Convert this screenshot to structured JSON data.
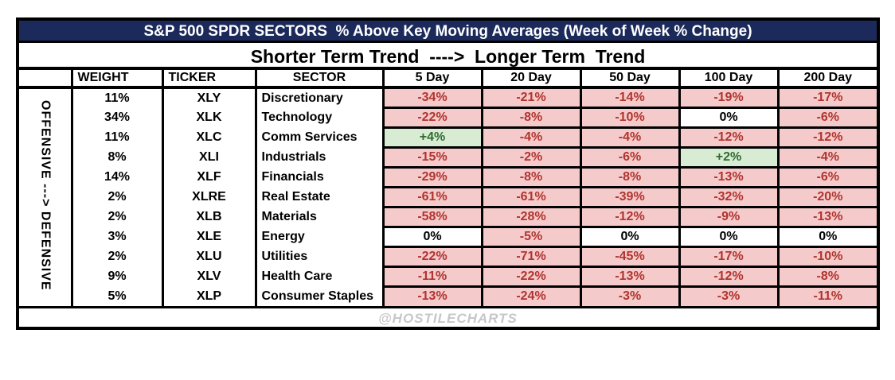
{
  "page": {
    "title": "S&P 500 SPDR SECTORS  % Above Key Moving Averages (Week of Week % Change)",
    "trend_header": "Shorter Term Trend  ---->  Longer Term  Trend",
    "side_label": "OFFENSIVE ---> DEFENSIVE",
    "watermark": "@HOSTILECHARTS"
  },
  "colors": {
    "title_bg": "#1b2a5a",
    "title_text": "#ffffff",
    "negative_bg": "#f5caca",
    "negative_text": "#b0342f",
    "positive_bg": "#d8ecd4",
    "positive_text": "#2e6b2f",
    "zero_bg": "#ffffff",
    "zero_text": "#000000",
    "border": "#000000",
    "watermark_text": "#c7c7c7"
  },
  "chart_data": {
    "type": "table",
    "title": "S&P 500 SPDR SECTORS  % Above Key Moving Averages (Week of Week % Change)",
    "subtitle": "Shorter Term Trend  ---->  Longer Term  Trend",
    "row_axis_label": "OFFENSIVE ---> DEFENSIVE",
    "columns": [
      "WEIGHT",
      "TICKER",
      "SECTOR",
      "5 Day",
      "20 Day",
      "50 Day",
      "100 Day",
      "200 Day"
    ],
    "rows": [
      {
        "weight": "11%",
        "ticker": "XLY",
        "sector": "Discretionary",
        "values": [
          -34,
          -21,
          -14,
          -19,
          -17
        ]
      },
      {
        "weight": "34%",
        "ticker": "XLK",
        "sector": "Technology",
        "values": [
          -22,
          -8,
          -10,
          0,
          -6
        ]
      },
      {
        "weight": "11%",
        "ticker": "XLC",
        "sector": "Comm Services",
        "values": [
          4,
          -4,
          -4,
          -12,
          -12
        ]
      },
      {
        "weight": "8%",
        "ticker": "XLI",
        "sector": "Industrials",
        "values": [
          -15,
          -2,
          -6,
          2,
          -4
        ]
      },
      {
        "weight": "14%",
        "ticker": "XLF",
        "sector": "Financials",
        "values": [
          -29,
          -8,
          -8,
          -13,
          -6
        ]
      },
      {
        "weight": "2%",
        "ticker": "XLRE",
        "sector": "Real Estate",
        "values": [
          -61,
          -61,
          -39,
          -32,
          -20
        ]
      },
      {
        "weight": "2%",
        "ticker": "XLB",
        "sector": "Materials",
        "values": [
          -58,
          -28,
          -12,
          -9,
          -13
        ]
      },
      {
        "weight": "3%",
        "ticker": "XLE",
        "sector": "Energy",
        "values": [
          0,
          -5,
          0,
          0,
          0
        ]
      },
      {
        "weight": "2%",
        "ticker": "XLU",
        "sector": "Utilities",
        "values": [
          -22,
          -71,
          -45,
          -17,
          -10
        ]
      },
      {
        "weight": "9%",
        "ticker": "XLV",
        "sector": "Health Care",
        "values": [
          -11,
          -22,
          -13,
          -12,
          -8
        ]
      },
      {
        "weight": "5%",
        "ticker": "XLP",
        "sector": "Consumer Staples",
        "values": [
          -13,
          -24,
          -3,
          -3,
          -11
        ]
      }
    ]
  }
}
